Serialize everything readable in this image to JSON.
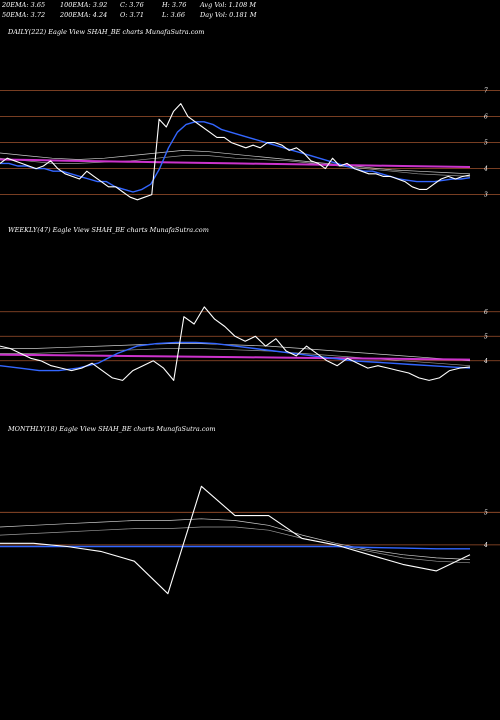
{
  "header": {
    "row1": [
      "20EMA: 3.65",
      "100EMA: 3.92",
      "C: 3.76",
      "H: 3.76",
      "Avg Vol: 1.108 M"
    ],
    "row2": [
      "50EMA: 3.72",
      "200EMA: 4.24",
      "O: 3.71",
      "L: 3.66",
      "Day Vol: 0.181 M"
    ]
  },
  "chart_data": [
    {
      "type": "line",
      "title": "DAILY(222) Eagle View SHAH_BE charts MunafaSutra.com",
      "y_ticks": [
        "7",
        "6",
        "5",
        "4",
        "3"
      ],
      "y_tick_values": [
        7,
        6,
        5,
        4,
        3
      ],
      "ylim": [
        2.6,
        7.6
      ],
      "grid": "orange horizontal lines at tick levels",
      "series": [
        {
          "color": "#ffffff",
          "values": [
            4.2,
            4.4,
            4.3,
            4.2,
            4.1,
            4.0,
            4.1,
            4.3,
            4.0,
            3.8,
            3.7,
            3.6,
            3.9,
            3.7,
            3.5,
            3.3,
            3.3,
            3.1,
            2.9,
            2.8,
            2.9,
            3.0,
            5.9,
            5.6,
            6.2,
            6.5,
            6.0,
            5.8,
            5.6,
            5.4,
            5.2,
            5.2,
            5.0,
            4.9,
            4.8,
            4.9,
            4.8,
            5.0,
            5.0,
            4.9,
            4.7,
            4.8,
            4.6,
            4.3,
            4.2,
            4.0,
            4.4,
            4.1,
            4.2,
            4.0,
            3.9,
            3.8,
            3.8,
            3.7,
            3.7,
            3.6,
            3.5,
            3.3,
            3.2,
            3.2,
            3.4,
            3.6,
            3.7,
            3.6,
            3.7,
            3.75
          ]
        },
        {
          "color": "#3366ff",
          "values": [
            4.2,
            4.2,
            4.1,
            4.1,
            4.0,
            4.0,
            3.9,
            3.9,
            3.8,
            3.7,
            3.6,
            3.5,
            3.5,
            3.3,
            3.2,
            3.1,
            3.2,
            3.4,
            4.0,
            4.8,
            5.4,
            5.7,
            5.8,
            5.8,
            5.7,
            5.5,
            5.4,
            5.3,
            5.2,
            5.1,
            5.0,
            4.9,
            4.8,
            4.7,
            4.6,
            4.5,
            4.4,
            4.3,
            4.2,
            4.1,
            4.0,
            3.9,
            3.9,
            3.8,
            3.7,
            3.6,
            3.55,
            3.5,
            3.5,
            3.5,
            3.55,
            3.6,
            3.6,
            3.65
          ]
        },
        {
          "color": "#cc33cc",
          "values": [
            4.35,
            4.33,
            4.3,
            4.28,
            4.26,
            4.24,
            4.22,
            4.2,
            4.18,
            4.16,
            4.14,
            4.12,
            4.1,
            4.08,
            4.06
          ]
        },
        {
          "color": "#999999",
          "values": [
            4.4,
            4.3,
            4.2,
            4.2,
            4.25,
            4.3,
            4.4,
            4.5,
            4.5,
            4.4,
            4.35,
            4.3,
            4.2,
            4.1,
            4.0,
            3.9,
            3.8,
            3.75,
            3.7
          ]
        },
        {
          "color": "#cccccc",
          "values": [
            4.6,
            4.5,
            4.4,
            4.35,
            4.4,
            4.5,
            4.6,
            4.7,
            4.65,
            4.55,
            4.45,
            4.35,
            4.25,
            4.15,
            4.05,
            3.95,
            3.9,
            3.85,
            3.8
          ]
        }
      ]
    },
    {
      "type": "line",
      "title": "WEEKLY(47) Eagle View SHAH_BE charts MunafaSutra.com",
      "y_ticks": [
        "6",
        "5",
        "4"
      ],
      "y_tick_values": [
        6,
        5,
        4
      ],
      "ylim": [
        2.4,
        7.5
      ],
      "grid": "orange horizontal lines at tick levels",
      "series": [
        {
          "color": "#ffffff",
          "values": [
            4.6,
            4.5,
            4.3,
            4.1,
            4.0,
            3.8,
            3.7,
            3.6,
            3.7,
            3.9,
            3.6,
            3.3,
            3.2,
            3.6,
            3.8,
            4.0,
            3.7,
            3.2,
            5.8,
            5.5,
            6.2,
            5.7,
            5.4,
            5.0,
            4.8,
            5.0,
            4.6,
            4.9,
            4.4,
            4.2,
            4.6,
            4.3,
            4.0,
            3.8,
            4.1,
            3.9,
            3.7,
            3.8,
            3.7,
            3.6,
            3.5,
            3.3,
            3.2,
            3.3,
            3.6,
            3.7,
            3.75
          ]
        },
        {
          "color": "#3366ff",
          "values": [
            3.8,
            3.7,
            3.6,
            3.6,
            3.7,
            3.9,
            4.3,
            4.6,
            4.7,
            4.75,
            4.75,
            4.7,
            4.6,
            4.5,
            4.4,
            4.3,
            4.2,
            4.1,
            4.0,
            3.95,
            3.9,
            3.85,
            3.8,
            3.75,
            3.7
          ]
        },
        {
          "color": "#cc33cc",
          "values": [
            4.25,
            4.23,
            4.21,
            4.19,
            4.17,
            4.15,
            4.13,
            4.11,
            4.09,
            4.07,
            4.05
          ]
        },
        {
          "color": "#999999",
          "values": [
            4.3,
            4.3,
            4.35,
            4.4,
            4.45,
            4.5,
            4.5,
            4.45,
            4.4,
            4.3,
            4.2,
            4.1,
            4.0,
            3.9,
            3.8
          ]
        },
        {
          "color": "#cccccc",
          "values": [
            4.5,
            4.5,
            4.55,
            4.6,
            4.65,
            4.7,
            4.7,
            4.65,
            4.6,
            4.5,
            4.4,
            4.3,
            4.2,
            4.1,
            4.0
          ]
        }
      ]
    },
    {
      "type": "line",
      "title": "MONTHLY(18) Eagle View SHAH_BE charts MunafaSutra.com",
      "y_ticks": [
        "5",
        "4"
      ],
      "y_tick_values": [
        5,
        4
      ],
      "ylim": [
        2.0,
        6.3
      ],
      "grid": "orange horizontal lines at tick levels",
      "series": [
        {
          "color": "#ffffff",
          "values": [
            4.05,
            4.05,
            3.95,
            3.8,
            3.5,
            2.5,
            5.8,
            4.9,
            4.9,
            4.2,
            4.0,
            3.7,
            3.4,
            3.2,
            3.7
          ]
        },
        {
          "color": "#3366ff",
          "values": [
            3.95,
            3.95,
            3.95,
            3.95,
            3.95,
            3.95,
            3.95,
            3.95,
            3.95,
            3.95,
            3.95,
            3.92,
            3.9,
            3.88,
            3.88
          ]
        },
        {
          "color": "#999999",
          "values": [
            4.3,
            4.35,
            4.4,
            4.45,
            4.5,
            4.5,
            4.55,
            4.55,
            4.45,
            4.2,
            4.0,
            3.8,
            3.6,
            3.5,
            3.45
          ]
        },
        {
          "color": "#cccccc",
          "values": [
            4.55,
            4.6,
            4.65,
            4.7,
            4.75,
            4.75,
            4.8,
            4.75,
            4.6,
            4.3,
            4.05,
            3.85,
            3.7,
            3.6,
            3.55
          ]
        }
      ]
    }
  ]
}
